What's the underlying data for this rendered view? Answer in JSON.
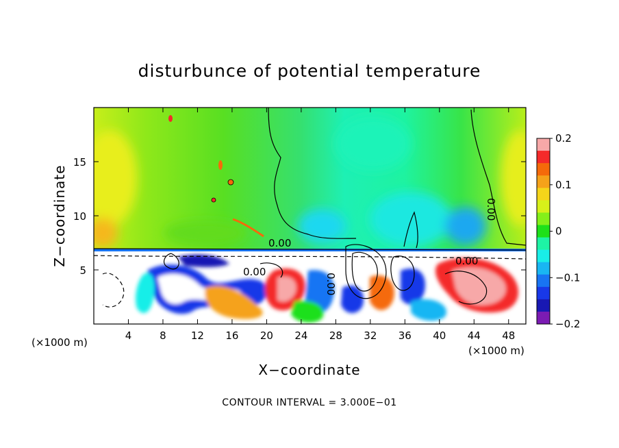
{
  "chart_data": {
    "type": "heatmap",
    "title": "disturbunce of potential temperature",
    "xlabel": "X−coordinate",
    "ylabel": "Z−coordinate",
    "x_unit": "(×1000 m)",
    "z_unit": "(×1000 m)",
    "xlim": [
      0,
      50
    ],
    "ylim": [
      0,
      20
    ],
    "x_ticks": [
      4,
      8,
      12,
      16,
      20,
      24,
      28,
      32,
      36,
      40,
      44,
      48
    ],
    "y_ticks": [
      5,
      10,
      15
    ],
    "colorbar": {
      "range": [
        -0.2,
        0.2
      ],
      "tick_values": [
        0.2,
        0.1,
        0,
        -0.1,
        -0.2
      ],
      "tick_labels": [
        "0.2",
        "0.1",
        "0",
        "−0.1",
        "−0.2"
      ],
      "colors": [
        "#f7a8a8",
        "#f42a2a",
        "#f56a0a",
        "#f5a21a",
        "#f5d51a",
        "#d7f01a",
        "#84f01a",
        "#1ee01a",
        "#1ef3a5",
        "#19eee8",
        "#19b6f3",
        "#1874f3",
        "#1838e8",
        "#1818b3",
        "#7b1bb3"
      ]
    },
    "contour_labels": [
      "0.00",
      "0.00",
      "0.00",
      "0.00",
      "0.00"
    ],
    "contour_interval_text": "CONTOUR INTERVAL = 3.000E−01",
    "grid": false
  }
}
